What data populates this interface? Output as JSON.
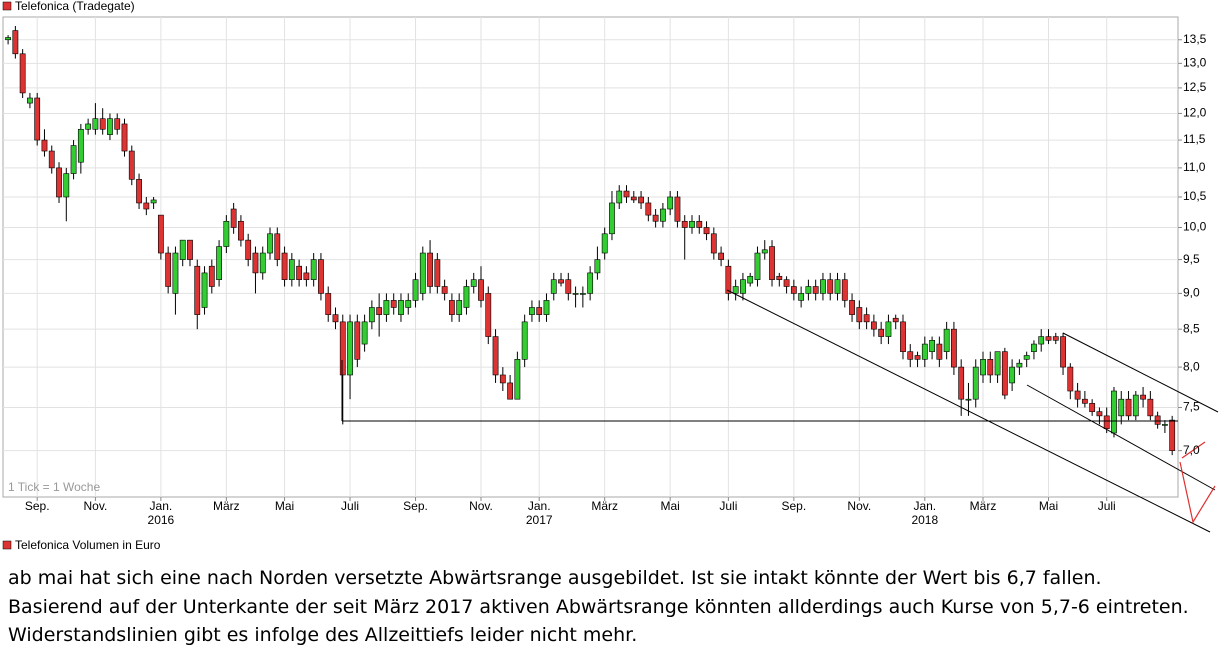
{
  "chart_data": {
    "type": "candlestick",
    "series": [
      {
        "name": "Telefonica (Tradegate)",
        "up_color": "#33cc33",
        "down_color": "#dd3333",
        "values": [
          [
            13.5,
            13.6,
            13.4,
            13.55
          ],
          [
            13.7,
            13.8,
            13.1,
            13.2
          ],
          [
            13.2,
            13.3,
            12.3,
            12.4
          ],
          [
            12.2,
            12.4,
            12.1,
            12.3
          ],
          [
            12.3,
            12.4,
            11.4,
            11.5
          ],
          [
            11.5,
            11.7,
            11.2,
            11.3
          ],
          [
            11.3,
            11.4,
            10.9,
            11.0
          ],
          [
            11.0,
            11.1,
            10.4,
            10.5
          ],
          [
            10.5,
            11.0,
            10.1,
            10.9
          ],
          [
            10.9,
            11.5,
            10.8,
            11.4
          ],
          [
            11.1,
            11.8,
            10.9,
            11.7
          ],
          [
            11.7,
            11.9,
            11.6,
            11.8
          ],
          [
            11.7,
            12.2,
            11.6,
            11.9
          ],
          [
            11.9,
            12.1,
            11.6,
            11.7
          ],
          [
            11.6,
            12.0,
            11.5,
            11.9
          ],
          [
            11.9,
            12.0,
            11.6,
            11.7
          ],
          [
            11.8,
            11.9,
            11.2,
            11.3
          ],
          [
            11.3,
            11.4,
            10.7,
            10.8
          ],
          [
            10.8,
            10.9,
            10.3,
            10.4
          ],
          [
            10.4,
            10.5,
            10.2,
            10.3
          ],
          [
            10.4,
            10.5,
            10.3,
            10.45
          ],
          [
            10.2,
            10.2,
            9.5,
            9.6
          ],
          [
            9.6,
            9.7,
            9.0,
            9.1
          ],
          [
            9.0,
            9.7,
            8.7,
            9.6
          ],
          [
            9.5,
            9.8,
            9.4,
            9.8
          ],
          [
            9.8,
            9.8,
            9.4,
            9.5
          ],
          [
            9.4,
            9.5,
            8.5,
            8.7
          ],
          [
            8.8,
            9.4,
            8.7,
            9.3
          ],
          [
            9.4,
            9.5,
            9.0,
            9.1
          ],
          [
            9.2,
            9.8,
            9.1,
            9.7
          ],
          [
            9.7,
            10.2,
            9.6,
            10.1
          ],
          [
            10.3,
            10.4,
            9.9,
            10.0
          ],
          [
            10.1,
            10.2,
            9.7,
            9.8
          ],
          [
            9.8,
            9.9,
            9.4,
            9.5
          ],
          [
            9.6,
            9.7,
            9.0,
            9.3
          ],
          [
            9.3,
            9.7,
            9.2,
            9.6
          ],
          [
            9.6,
            10.0,
            9.5,
            9.9
          ],
          [
            9.9,
            10.0,
            9.4,
            9.5
          ],
          [
            9.6,
            9.7,
            9.1,
            9.2
          ],
          [
            9.2,
            9.6,
            9.1,
            9.5
          ],
          [
            9.4,
            9.5,
            9.1,
            9.2
          ],
          [
            9.3,
            9.4,
            9.1,
            9.2
          ],
          [
            9.2,
            9.6,
            9.1,
            9.5
          ],
          [
            9.5,
            9.6,
            8.9,
            9.0
          ],
          [
            9.0,
            9.1,
            8.6,
            8.7
          ],
          [
            8.7,
            8.8,
            8.5,
            8.6
          ],
          [
            8.6,
            8.7,
            7.3,
            7.9
          ],
          [
            7.9,
            8.7,
            7.6,
            8.6
          ],
          [
            8.6,
            8.7,
            8.0,
            8.1
          ],
          [
            8.3,
            8.7,
            8.2,
            8.6
          ],
          [
            8.6,
            8.9,
            8.5,
            8.8
          ],
          [
            8.8,
            9.0,
            8.4,
            8.7
          ],
          [
            8.7,
            9.0,
            8.6,
            8.9
          ],
          [
            8.9,
            9.0,
            8.7,
            8.8
          ],
          [
            8.7,
            9.0,
            8.6,
            8.9
          ],
          [
            8.8,
            9.0,
            8.7,
            8.9
          ],
          [
            8.9,
            9.3,
            8.8,
            9.2
          ],
          [
            9.0,
            9.7,
            8.9,
            9.6
          ],
          [
            9.6,
            9.8,
            9.0,
            9.1
          ],
          [
            9.5,
            9.6,
            9.0,
            9.1
          ],
          [
            9.1,
            9.2,
            8.9,
            9.0
          ],
          [
            8.9,
            9.0,
            8.6,
            8.7
          ],
          [
            8.7,
            9.0,
            8.6,
            8.9
          ],
          [
            8.8,
            9.2,
            8.7,
            9.1
          ],
          [
            9.1,
            9.3,
            9.0,
            9.2
          ],
          [
            9.2,
            9.4,
            8.8,
            8.9
          ],
          [
            9.0,
            9.1,
            8.3,
            8.4
          ],
          [
            8.4,
            8.5,
            7.8,
            7.9
          ],
          [
            7.9,
            8.0,
            7.7,
            7.8
          ],
          [
            7.8,
            7.9,
            7.6,
            7.6
          ],
          [
            7.6,
            8.2,
            7.6,
            8.1
          ],
          [
            8.1,
            8.7,
            8.0,
            8.6
          ],
          [
            8.7,
            8.9,
            8.6,
            8.8
          ],
          [
            8.8,
            8.9,
            8.6,
            8.7
          ],
          [
            8.7,
            9.0,
            8.6,
            8.9
          ],
          [
            9.0,
            9.3,
            8.9,
            9.2
          ],
          [
            9.2,
            9.3,
            9.1,
            9.15
          ],
          [
            9.2,
            9.3,
            8.9,
            9.0
          ],
          [
            9.0,
            9.1,
            8.8,
            9.0
          ],
          [
            9.0,
            9.1,
            8.8,
            9.0
          ],
          [
            9.0,
            9.4,
            8.9,
            9.3
          ],
          [
            9.3,
            9.7,
            9.2,
            9.5
          ],
          [
            9.6,
            10.0,
            9.5,
            9.9
          ],
          [
            9.9,
            10.6,
            9.8,
            10.4
          ],
          [
            10.4,
            10.7,
            10.3,
            10.6
          ],
          [
            10.6,
            10.7,
            10.4,
            10.5
          ],
          [
            10.5,
            10.6,
            10.4,
            10.45
          ],
          [
            10.5,
            10.6,
            10.3,
            10.4
          ],
          [
            10.4,
            10.5,
            10.1,
            10.2
          ],
          [
            10.2,
            10.3,
            10.0,
            10.1
          ],
          [
            10.1,
            10.4,
            10.0,
            10.3
          ],
          [
            10.3,
            10.6,
            10.2,
            10.5
          ],
          [
            10.5,
            10.6,
            10.0,
            10.1
          ],
          [
            10.1,
            10.2,
            9.5,
            10.0
          ],
          [
            10.0,
            10.2,
            9.9,
            10.1
          ],
          [
            10.1,
            10.2,
            9.9,
            10.0
          ],
          [
            10.0,
            10.1,
            9.8,
            9.9
          ],
          [
            9.9,
            10.0,
            9.5,
            9.6
          ],
          [
            9.6,
            9.7,
            9.4,
            9.5
          ],
          [
            9.4,
            9.5,
            8.9,
            9.0
          ],
          [
            9.0,
            9.2,
            8.9,
            9.1
          ],
          [
            9.0,
            9.3,
            8.9,
            9.2
          ],
          [
            9.15,
            9.3,
            9.1,
            9.25
          ],
          [
            9.2,
            9.7,
            9.1,
            9.6
          ],
          [
            9.6,
            9.8,
            9.5,
            9.65
          ],
          [
            9.7,
            9.8,
            9.1,
            9.2
          ],
          [
            9.25,
            9.3,
            9.1,
            9.2
          ],
          [
            9.2,
            9.25,
            9.0,
            9.1
          ],
          [
            9.1,
            9.2,
            8.9,
            9.0
          ],
          [
            8.9,
            9.1,
            8.8,
            9.0
          ],
          [
            9.0,
            9.2,
            8.9,
            9.1
          ],
          [
            9.1,
            9.2,
            8.9,
            9.0
          ],
          [
            9.0,
            9.3,
            8.9,
            9.2
          ],
          [
            9.2,
            9.3,
            8.9,
            9.0
          ],
          [
            9.0,
            9.3,
            8.9,
            9.2
          ],
          [
            9.2,
            9.3,
            8.8,
            8.9
          ],
          [
            8.9,
            9.0,
            8.6,
            8.7
          ],
          [
            8.8,
            8.9,
            8.5,
            8.6
          ],
          [
            8.7,
            8.8,
            8.5,
            8.6
          ],
          [
            8.6,
            8.7,
            8.4,
            8.5
          ],
          [
            8.5,
            8.6,
            8.3,
            8.4
          ],
          [
            8.4,
            8.7,
            8.3,
            8.6
          ],
          [
            8.65,
            8.7,
            8.5,
            8.6
          ],
          [
            8.6,
            8.7,
            8.1,
            8.2
          ],
          [
            8.2,
            8.3,
            8.0,
            8.1
          ],
          [
            8.15,
            8.2,
            8.0,
            8.1
          ],
          [
            8.1,
            8.4,
            8.0,
            8.3
          ],
          [
            8.2,
            8.4,
            8.1,
            8.35
          ],
          [
            8.3,
            8.4,
            8.0,
            8.1
          ],
          [
            8.2,
            8.6,
            8.1,
            8.5
          ],
          [
            8.5,
            8.6,
            7.9,
            8.0
          ],
          [
            8.0,
            8.1,
            7.4,
            7.6
          ],
          [
            7.6,
            7.8,
            7.4,
            7.6
          ],
          [
            7.6,
            8.1,
            7.5,
            8.0
          ],
          [
            7.9,
            8.2,
            7.8,
            8.1
          ],
          [
            8.1,
            8.2,
            7.8,
            7.9
          ],
          [
            7.9,
            8.2,
            7.8,
            8.2
          ],
          [
            8.2,
            8.25,
            7.6,
            7.65
          ],
          [
            7.8,
            8.1,
            7.7,
            8.0
          ],
          [
            8.0,
            8.1,
            7.9,
            8.05
          ],
          [
            8.1,
            8.2,
            8.0,
            8.15
          ],
          [
            8.2,
            8.35,
            8.1,
            8.3
          ],
          [
            8.3,
            8.5,
            8.2,
            8.4
          ],
          [
            8.4,
            8.5,
            8.3,
            8.35
          ],
          [
            8.4,
            8.45,
            8.3,
            8.35
          ],
          [
            8.4,
            8.45,
            7.9,
            8.0
          ],
          [
            8.0,
            8.05,
            7.6,
            7.7
          ],
          [
            7.7,
            7.8,
            7.5,
            7.6
          ],
          [
            7.6,
            7.7,
            7.5,
            7.55
          ],
          [
            7.55,
            7.6,
            7.4,
            7.45
          ],
          [
            7.45,
            7.5,
            7.3,
            7.4
          ],
          [
            7.4,
            7.5,
            7.2,
            7.25
          ],
          [
            7.2,
            7.75,
            7.15,
            7.7
          ],
          [
            7.4,
            7.7,
            7.3,
            7.6
          ],
          [
            7.6,
            7.7,
            7.35,
            7.4
          ],
          [
            7.4,
            7.7,
            7.35,
            7.65
          ],
          [
            7.65,
            7.75,
            7.5,
            7.6
          ],
          [
            7.6,
            7.7,
            7.35,
            7.4
          ],
          [
            7.4,
            7.45,
            7.25,
            7.3
          ],
          [
            7.3,
            7.35,
            7.2,
            7.3
          ],
          [
            7.35,
            7.4,
            6.95,
            7.0
          ]
        ]
      }
    ],
    "volume_legend": "Telefonica Volumen in Euro",
    "legend_color": "#dd3333",
    "note": "1 Tick = 1 Woche",
    "ylog": true,
    "grid": true,
    "ylim": [
      6.5,
      14.0
    ],
    "yticks": [
      {
        "value": 7,
        "label": "7,0"
      },
      {
        "value": 7.5,
        "label": "7,5"
      },
      {
        "value": 8,
        "label": "8,0"
      },
      {
        "value": 8.5,
        "label": "8,5"
      },
      {
        "value": 9,
        "label": "9,0"
      },
      {
        "value": 9.5,
        "label": "9,5"
      },
      {
        "value": 10,
        "label": "10,0"
      },
      {
        "value": 10.5,
        "label": "10,5"
      },
      {
        "value": 11,
        "label": "11,0"
      },
      {
        "value": 11.5,
        "label": "11,5"
      },
      {
        "value": 12,
        "label": "12,0"
      },
      {
        "value": 12.5,
        "label": "12,5"
      },
      {
        "value": 13,
        "label": "13,0"
      },
      {
        "value": 13.5,
        "label": "13,5"
      }
    ],
    "xlim": [
      -0.7,
      160.8
    ],
    "xticks": [
      {
        "value": 4,
        "label": "Sep."
      },
      {
        "value": 12,
        "label": "Nov."
      },
      {
        "value": 21,
        "label": "Jan.",
        "year": "2016"
      },
      {
        "value": 30,
        "label": "März"
      },
      {
        "value": 38,
        "label": "Mai"
      },
      {
        "value": 47,
        "label": "Juli"
      },
      {
        "value": 56,
        "label": "Sep."
      },
      {
        "value": 65,
        "label": "Nov."
      },
      {
        "value": 73,
        "label": "Jan.",
        "year": "2017"
      },
      {
        "value": 82,
        "label": "März"
      },
      {
        "value": 91,
        "label": "Mai"
      },
      {
        "value": 99,
        "label": "Juli"
      },
      {
        "value": 108,
        "label": "Sep."
      },
      {
        "value": 117,
        "label": "Nov."
      },
      {
        "value": 126,
        "label": "Jan.",
        "year": "2018"
      },
      {
        "value": 134,
        "label": "März"
      },
      {
        "value": 143,
        "label": "Mai"
      },
      {
        "value": 151,
        "label": "Juli"
      }
    ]
  },
  "comment": [
    "ab mai hat sich eine nach Norden versetzte Abwärtsrange ausgebildet. Ist sie intakt könnte der Wert bis 6,7 fallen.",
    "Basierend auf der Unterkante der seit März 2017 aktiven Abwärtsrange könnten allderdings auch Kurse von 5,7-6 eintreten.",
    "Widerstandslinien gibt es infolge des Allzeittiefs leider nicht mehr."
  ]
}
